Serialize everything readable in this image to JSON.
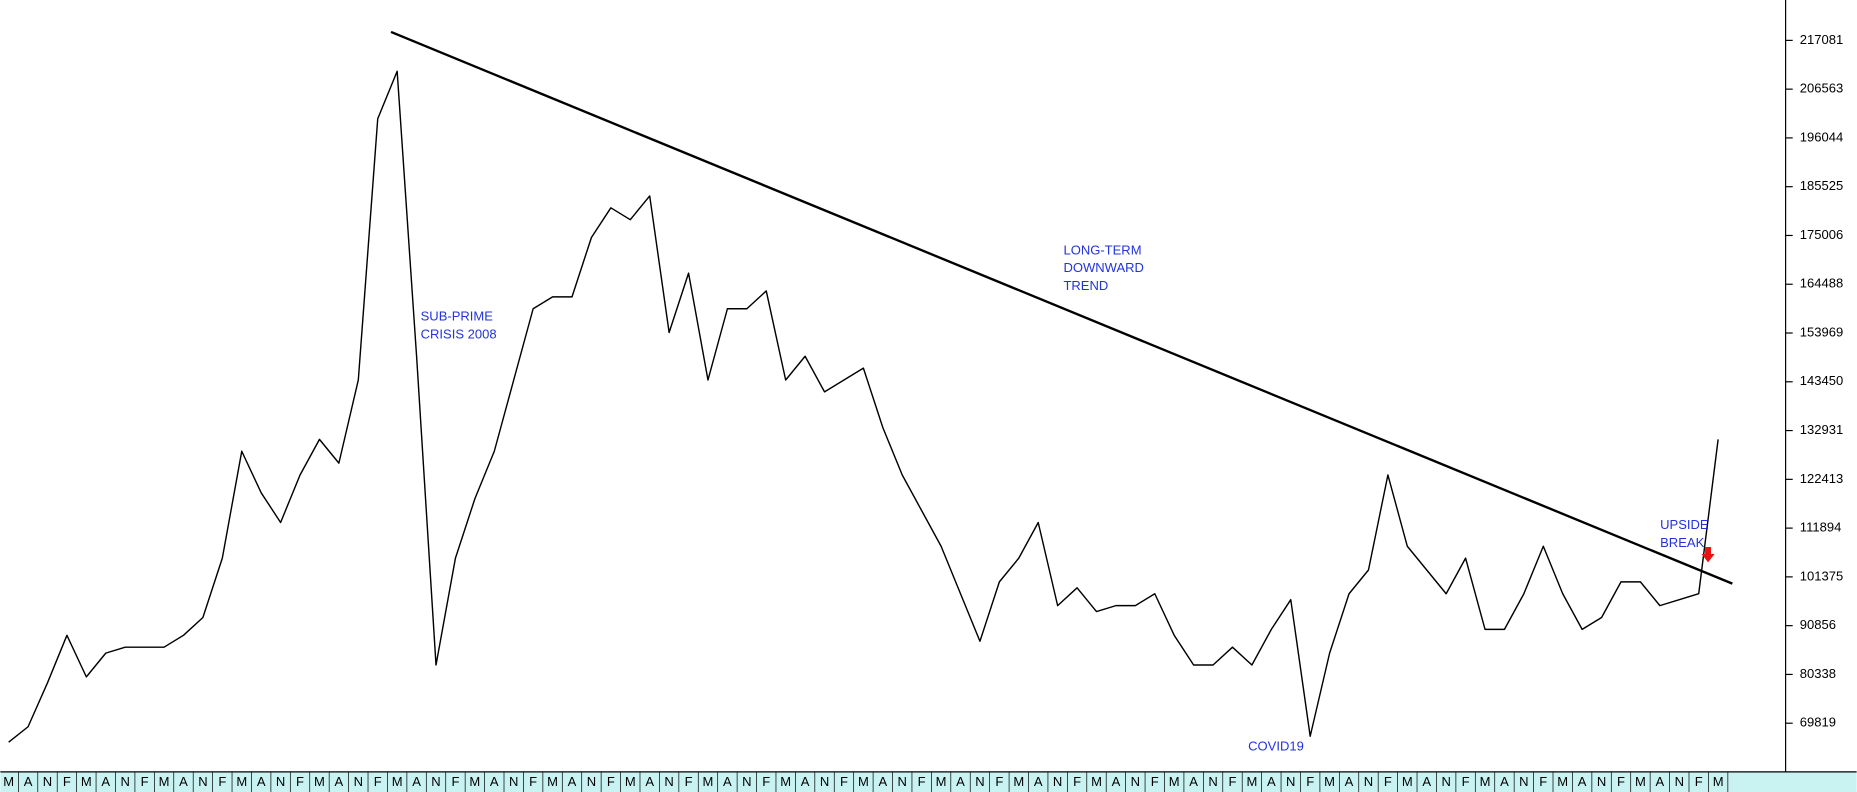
{
  "chart_data": {
    "type": "line",
    "categories": [
      "M",
      "A",
      "N",
      "F",
      "M",
      "A",
      "N",
      "F",
      "M",
      "A",
      "N",
      "F",
      "M",
      "A",
      "N",
      "F",
      "M",
      "A",
      "N",
      "F",
      "M",
      "A",
      "N",
      "F",
      "M",
      "A",
      "N",
      "F",
      "M",
      "A",
      "N",
      "F",
      "M",
      "A",
      "N",
      "F",
      "M",
      "A",
      "N",
      "F",
      "M",
      "A",
      "N",
      "F",
      "M",
      "A",
      "N",
      "F",
      "M",
      "A",
      "N",
      "F",
      "M",
      "A",
      "N",
      "F",
      "M",
      "A",
      "N",
      "F",
      "M",
      "A",
      "N",
      "F",
      "M",
      "A",
      "N",
      "F",
      "M",
      "A",
      "N",
      "F",
      "M",
      "A",
      "N",
      "F",
      "M",
      "A",
      "N",
      "F",
      "M",
      "A",
      "N",
      "F",
      "M",
      "A",
      "N",
      "F",
      "M"
    ],
    "series": [
      {
        "color": "#000000",
        "values": [
          65726,
          69055,
          78531,
          88775,
          79811,
          84933,
          86214,
          86214,
          86214,
          88775,
          92616,
          105421,
          128470,
          119507,
          113104,
          123348,
          131031,
          125909,
          143836,
          200178,
          210422,
          148958,
          82372,
          105421,
          118226,
          128470,
          143836,
          159202,
          161763,
          161763,
          174568,
          180971,
          178410,
          183532,
          154080,
          166885,
          143836,
          159202,
          159202,
          163044,
          143836,
          148958,
          141275,
          143836,
          146397,
          133592,
          123348,
          115665,
          107982,
          97739,
          87494,
          100299,
          105421,
          113104,
          95177,
          99019,
          93897,
          95177,
          95177,
          97739,
          88775,
          82372,
          82372,
          86214,
          82372,
          90055,
          96458,
          67006,
          84933,
          97739,
          102860,
          123348,
          107982,
          102860,
          97739,
          105421,
          90055,
          90055,
          97739,
          107982,
          97739,
          90055,
          92616,
          100299,
          100299,
          95177,
          96458,
          97739,
          131031
        ]
      }
    ],
    "ylim": [
      59323,
      225788
    ],
    "yticks": [
      217081,
      206563,
      196044,
      185525,
      175006,
      164488,
      153969,
      143450,
      132931,
      122413,
      111894,
      101375,
      90856,
      80338,
      69819
    ],
    "annotations": [
      {
        "lines": [
          "SUB-PRIME",
          "CRISIS 2008"
        ]
      },
      {
        "lines": [
          "LONG-TERM",
          "DOWNWARD",
          "TREND"
        ]
      },
      {
        "lines": [
          "COVID19"
        ]
      },
      {
        "lines": [
          "UPSIDE",
          "BREAK"
        ]
      }
    ]
  }
}
